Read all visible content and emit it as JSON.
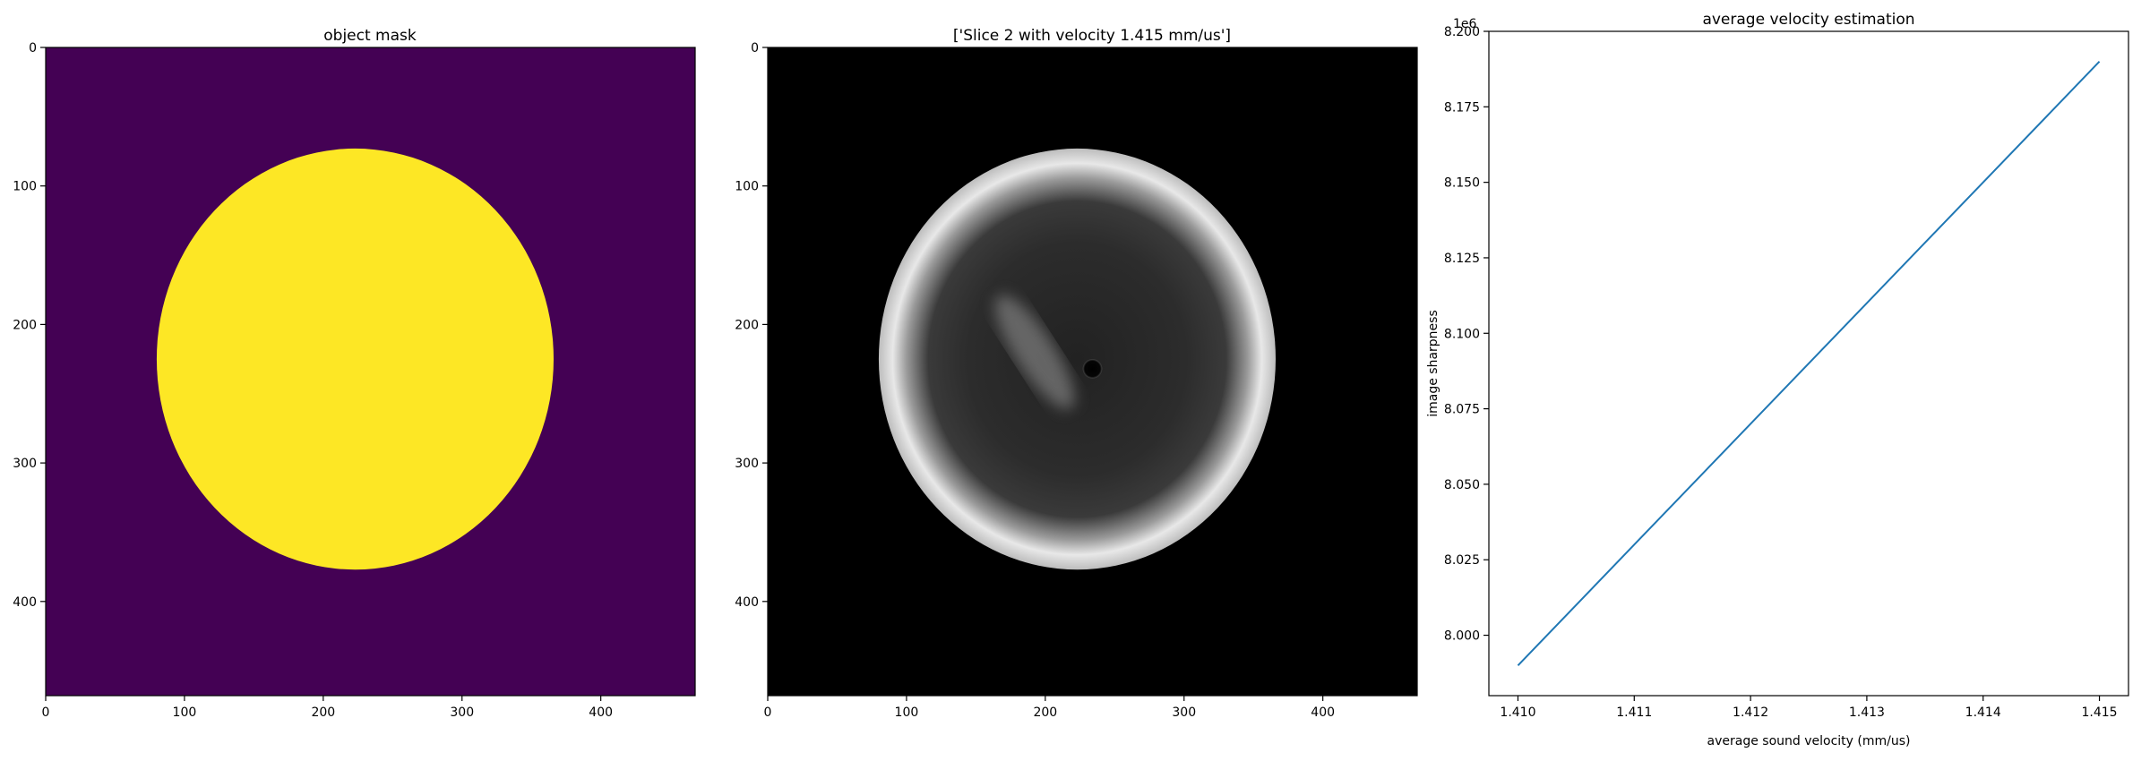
{
  "chart_data": [
    {
      "type": "heatmap",
      "title": "object mask",
      "xlim": [
        0,
        468
      ],
      "ylim": [
        468,
        0
      ],
      "xticks": [
        0,
        100,
        200,
        300,
        400
      ],
      "yticks": [
        0,
        100,
        200,
        300,
        400
      ],
      "colormap": "viridis",
      "colors": {
        "background": "#440154",
        "object": "#fde725"
      },
      "object": {
        "shape": "ellipse",
        "center_x": 223,
        "center_y": 225,
        "radius_x": 143,
        "radius_y": 152
      }
    },
    {
      "type": "heatmap",
      "title": "['Slice 2 with velocity 1.415 mm/us']",
      "xlim": [
        0,
        468
      ],
      "ylim": [
        468,
        0
      ],
      "xticks": [
        0,
        100,
        200,
        300,
        400
      ],
      "yticks": [
        0,
        100,
        200,
        300,
        400
      ],
      "colormap": "gray",
      "colors": {
        "background": "#000000",
        "ring": "#e6e6e6",
        "interior": "#2a2a2a"
      },
      "object": {
        "shape": "ellipse",
        "center_x": 223,
        "center_y": 225,
        "radius_x": 143,
        "radius_y": 152
      },
      "features": [
        {
          "name": "bright-streak",
          "x1": 170,
          "y1": 185,
          "x2": 215,
          "y2": 255
        },
        {
          "name": "dark-spot",
          "x": 234,
          "y": 232,
          "radius": 7
        }
      ]
    },
    {
      "type": "line",
      "title": "average velocity estimation",
      "xlabel": "average sound velocity (mm/us)",
      "ylabel": "image sharpness",
      "offset_text": "1e6",
      "xlim": [
        1.40975,
        1.41525
      ],
      "ylim": [
        7.98,
        8.2
      ],
      "xticks": [
        "1.410",
        "1.411",
        "1.412",
        "1.413",
        "1.414",
        "1.415"
      ],
      "xtick_values": [
        1.41,
        1.411,
        1.412,
        1.413,
        1.414,
        1.415
      ],
      "yticks": [
        "8.000",
        "8.025",
        "8.050",
        "8.075",
        "8.100",
        "8.125",
        "8.150",
        "8.175",
        "8.200"
      ],
      "ytick_values": [
        8.0,
        8.025,
        8.05,
        8.075,
        8.1,
        8.125,
        8.15,
        8.175,
        8.2
      ],
      "grid": false,
      "line_color": "#1f77b4",
      "series": [
        {
          "x": [
            1.41,
            1.411,
            1.412,
            1.413,
            1.414,
            1.415
          ],
          "y": [
            7.99,
            8.03,
            8.07,
            8.11,
            8.15,
            8.19
          ]
        }
      ]
    }
  ]
}
